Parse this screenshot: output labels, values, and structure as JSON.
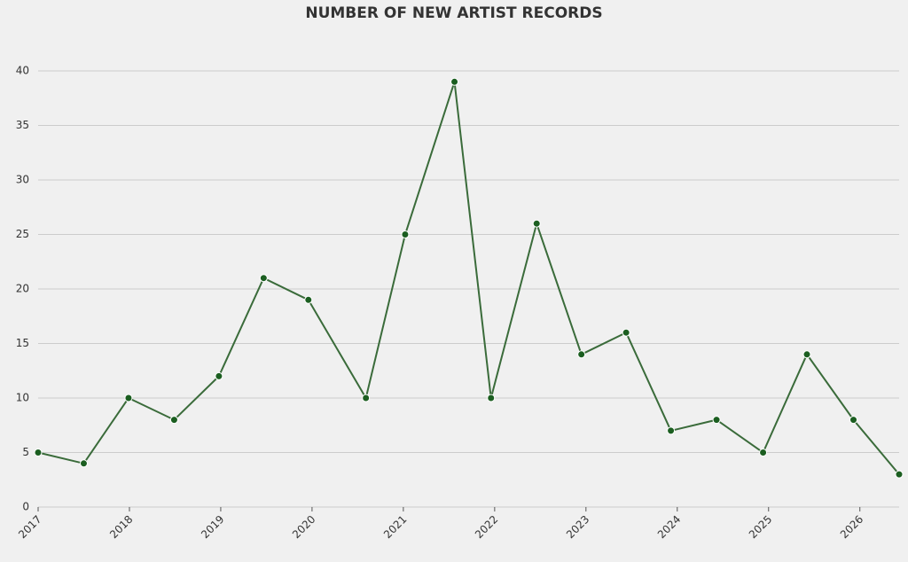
{
  "chart_data": {
    "type": "line",
    "title": "NUMBER OF NEW ARTIST RECORDS",
    "x": [
      2017.0,
      2017.5,
      2017.99,
      2018.49,
      2018.98,
      2019.47,
      2019.96,
      2020.59,
      2021.02,
      2021.56,
      2021.96,
      2022.46,
      2022.95,
      2023.44,
      2023.93,
      2024.43,
      2024.94,
      2025.42,
      2025.93,
      2026.43
    ],
    "values": [
      5,
      4,
      10,
      8,
      12,
      21,
      19,
      10,
      25,
      39,
      10,
      26,
      14,
      16,
      7,
      8,
      5,
      14,
      8,
      3
    ],
    "color": "#3a6b3a",
    "marker_color": "#1b5e20",
    "xlim": [
      2017.0,
      2026.43
    ],
    "xticks": [
      2017,
      2018,
      2019,
      2020,
      2021,
      2022,
      2023,
      2024,
      2025,
      2026
    ],
    "ylim": [
      0,
      40
    ],
    "yticks": [
      0,
      5,
      10,
      15,
      20,
      25,
      30,
      35,
      40
    ],
    "grid": true
  }
}
